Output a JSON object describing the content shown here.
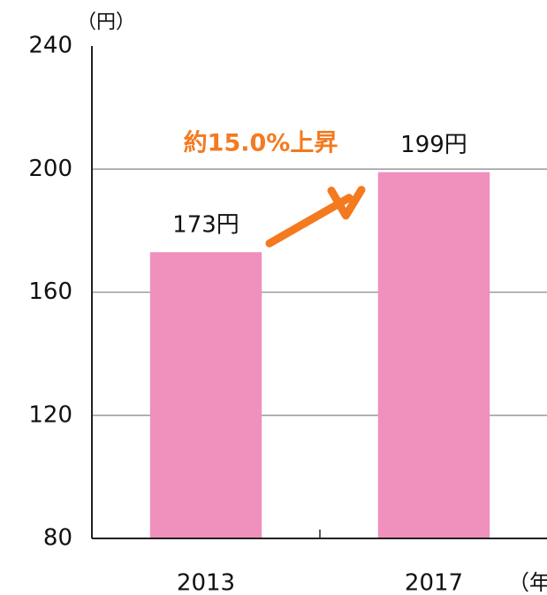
{
  "chart_data": {
    "type": "bar",
    "categories": [
      "2013",
      "2017"
    ],
    "values": [
      173,
      199
    ],
    "value_labels": [
      "173円",
      "199円"
    ],
    "color": "#f090bc",
    "ylim": [
      80,
      240
    ],
    "yticks": [
      80,
      120,
      160,
      200,
      240
    ],
    "grid": true,
    "y_axis_label": "（円）",
    "x_axis_label": "（年",
    "annotation": "約15.0%上昇",
    "annotation_color": "#f47a20"
  }
}
